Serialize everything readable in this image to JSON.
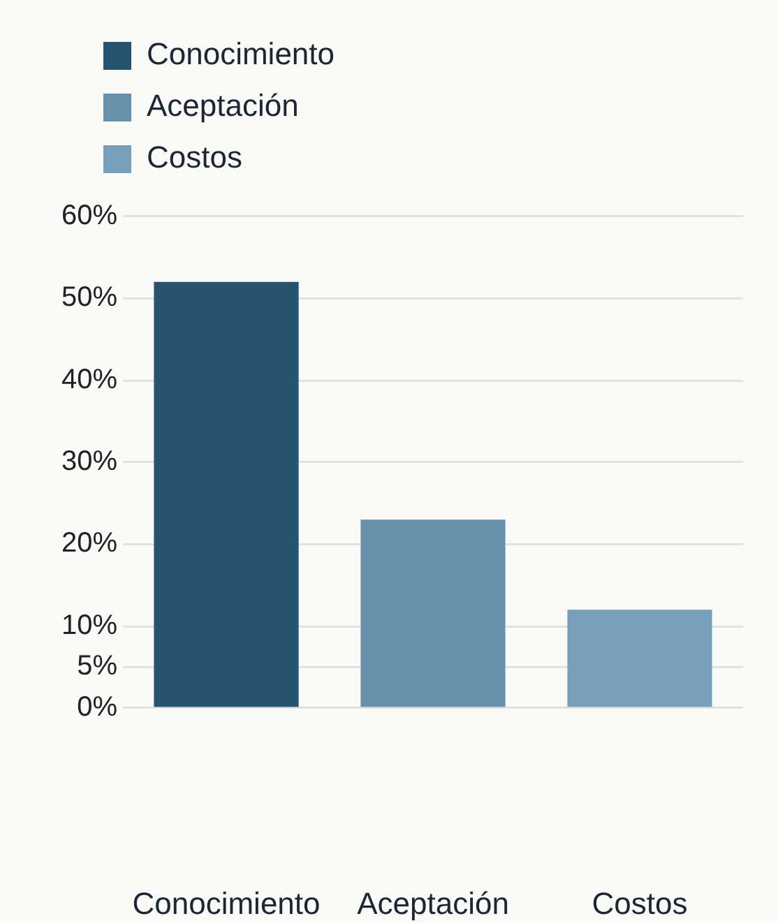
{
  "chart_data": {
    "type": "bar",
    "categories": [
      "Conocimiento",
      "Aceptación",
      "Costos"
    ],
    "series": [
      {
        "name": "Conocimiento",
        "color": "#26536d",
        "values": [
          52,
          null,
          null
        ]
      },
      {
        "name": "Aceptación",
        "color": "#6a91ab",
        "values": [
          null,
          23,
          null
        ]
      },
      {
        "name": "Costos",
        "color": "#789fb7",
        "values": [
          null,
          null,
          12
        ]
      }
    ],
    "ylim": [
      0,
      60
    ],
    "yticks": [
      {
        "value": 0,
        "label": "0%"
      },
      {
        "value": 5,
        "label": "5%"
      },
      {
        "value": 10,
        "label": "10%"
      },
      {
        "value": 20,
        "label": "20%"
      },
      {
        "value": 30,
        "label": "30%"
      },
      {
        "value": 40,
        "label": "40%"
      },
      {
        "value": 50,
        "label": "50%"
      },
      {
        "value": 60,
        "label": "60%"
      }
    ],
    "grid": "y",
    "legend": "top left"
  }
}
